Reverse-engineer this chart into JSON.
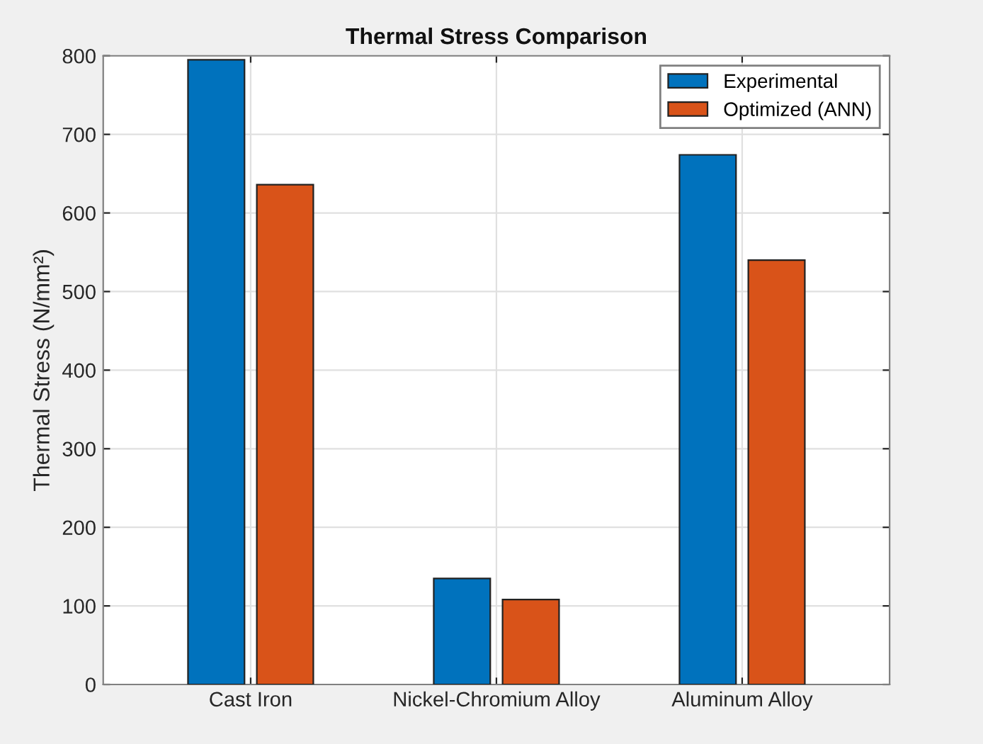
{
  "chart_data": {
    "type": "bar",
    "title": "Thermal Stress Comparison",
    "ylabel": "Thermal Stress (N/mm²)",
    "categories": [
      "Cast Iron",
      "Nickel-Chromium Alloy",
      "Aluminum Alloy"
    ],
    "series": [
      {
        "name": "Experimental",
        "color": "#0072bd",
        "values": [
          795,
          135,
          674
        ]
      },
      {
        "name": "Optimized (ANN)",
        "color": "#d95319",
        "values": [
          636,
          108,
          540
        ]
      }
    ],
    "ylim": [
      0,
      800
    ],
    "yticks": [
      0,
      100,
      200,
      300,
      400,
      500,
      600,
      700,
      800
    ],
    "grid": true,
    "legend": "top right"
  }
}
